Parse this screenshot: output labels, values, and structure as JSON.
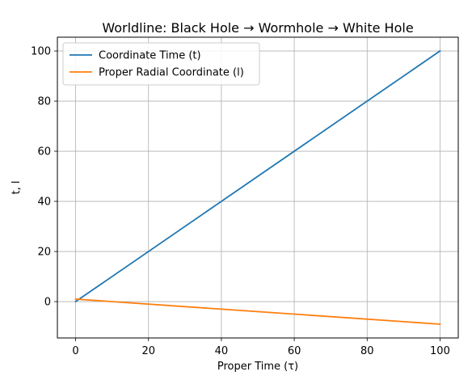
{
  "chart_data": {
    "type": "line",
    "title": "Worldline: Black Hole → Wormhole → White Hole",
    "xlabel": "Proper Time (τ)",
    "ylabel": "t, l",
    "xlim": [
      -5,
      105
    ],
    "ylim": [
      -14.5,
      105.5
    ],
    "xticks": [
      0,
      20,
      40,
      60,
      80,
      100
    ],
    "yticks": [
      0,
      20,
      40,
      60,
      80,
      100
    ],
    "grid": true,
    "legend_position": "top-left",
    "series": [
      {
        "name": "Coordinate Time (t)",
        "color": "#1f77b4",
        "x": [
          0,
          100
        ],
        "y": [
          0,
          100
        ]
      },
      {
        "name": "Proper Radial Coordinate (l)",
        "color": "#ff7f0e",
        "x": [
          0,
          100
        ],
        "y": [
          1,
          -9
        ]
      }
    ]
  }
}
